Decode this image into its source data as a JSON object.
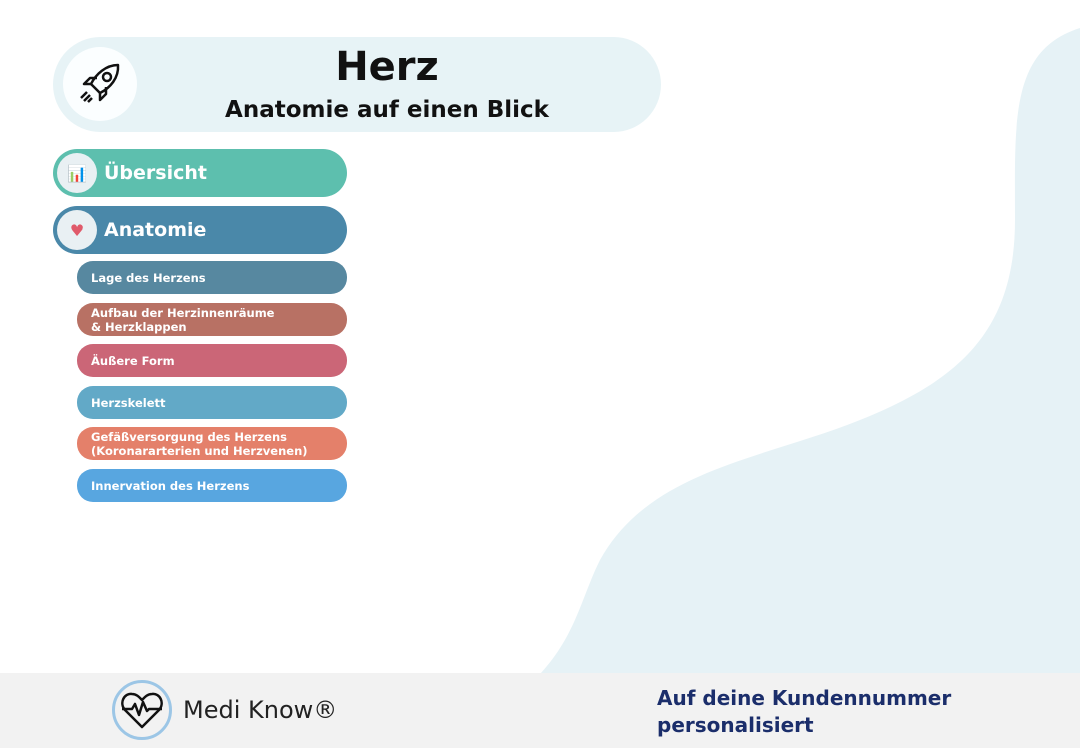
{
  "header": {
    "title": "Herz",
    "subtitle": "Anatomie auf einen Blick",
    "icon": "rocket-icon"
  },
  "nav": [
    {
      "label": "Übersicht",
      "color": "#5dbfae",
      "icon": "presentation-icon"
    },
    {
      "label": "Anatomie",
      "color": "#4a88a9",
      "icon": "heart-organ-icon"
    }
  ],
  "subnav": [
    {
      "label": "Lage des Herzens",
      "color": "#5788a0"
    },
    {
      "label": "Aufbau der Herzinnenräume & Herzklappen",
      "color": "#b87164"
    },
    {
      "label": "Äußere Form",
      "color": "#cb6677"
    },
    {
      "label": "Herzskelett",
      "color": "#62a9c7"
    },
    {
      "label": "Gefäßversorgung des Herzens (Koronararterien und Herzvenen)",
      "color": "#e4806a"
    },
    {
      "label": "Innervation des Herzens",
      "color": "#58a6e0"
    }
  ],
  "footer": {
    "brand": "Medi Know®",
    "note": "Auf deine Kundennummer personalisiert"
  }
}
